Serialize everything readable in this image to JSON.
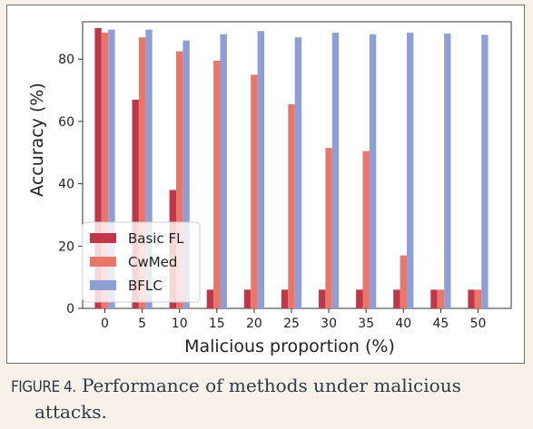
{
  "figure": {
    "label": "FIGURE 4.",
    "caption_line1": " Performance of methods under malicious",
    "caption_line2": "attacks."
  },
  "chart_data": {
    "type": "bar",
    "xlabel": "Malicious proportion (%)",
    "ylabel": "Accuracy (%)",
    "categories": [
      "0",
      "5",
      "10",
      "15",
      "20",
      "25",
      "30",
      "35",
      "40",
      "45",
      "50"
    ],
    "yticks": [
      0,
      20,
      40,
      60,
      80
    ],
    "ylim": [
      0,
      92
    ],
    "legend_position": "lower-left",
    "grid": false,
    "series": [
      {
        "name": "Basic FL",
        "color": "#c0374a",
        "values": [
          90,
          67,
          38,
          6,
          6,
          6,
          6,
          6,
          6,
          6,
          6
        ]
      },
      {
        "name": "CwMed",
        "color": "#e8776a",
        "values": [
          88.5,
          87,
          82.5,
          79.5,
          75,
          65.5,
          51.5,
          50.5,
          17,
          6,
          6
        ]
      },
      {
        "name": "BFLC",
        "color": "#8f9fd6",
        "values": [
          89.5,
          89.5,
          86,
          88,
          89,
          87,
          88.5,
          88,
          88.5,
          88.2,
          87.8
        ]
      }
    ]
  }
}
